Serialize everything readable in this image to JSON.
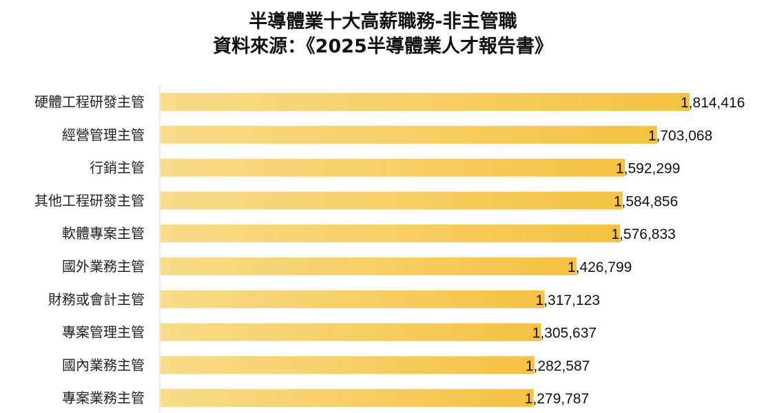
{
  "chart_data": {
    "type": "bar",
    "orientation": "horizontal",
    "title": "半導體業十大高薪職務-非主管職",
    "subtitle": "資料來源：《2025半導體業人才報告書》",
    "categories": [
      "硬體工程研發主管",
      "經營管理主管",
      "行銷主管",
      "其他工程研發主管",
      "軟體專案主管",
      "國外業務主管",
      "財務或會計主管",
      "專案管理主管",
      "國內業務主管",
      "專案業務主管"
    ],
    "values": [
      1814416,
      1703068,
      1592299,
      1584856,
      1576833,
      1426799,
      1317123,
      1305637,
      1282587,
      1279787
    ],
    "value_labels": [
      "1,814,416",
      "1,703,068",
      "1,592,299",
      "1,584,856",
      "1,576,833",
      "1,426,799",
      "1,317,123",
      "1,305,637",
      "1,282,587",
      "1,279,787"
    ],
    "xlim": [
      0,
      1814416
    ],
    "grid": false,
    "legend": "none",
    "bar_color_light": "#f8dc8a",
    "bar_color_dark": "#f5c242"
  }
}
